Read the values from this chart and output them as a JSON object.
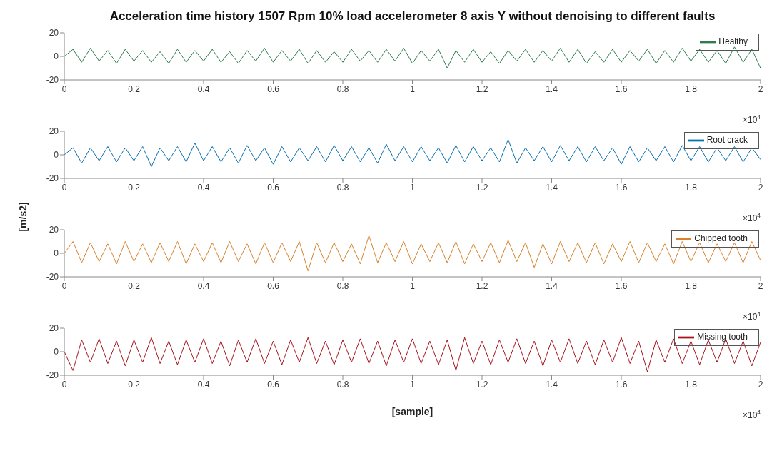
{
  "chart_data": [
    {
      "type": "line",
      "title": "Acceleration time history 1507 Rpm 10% load accelerometer 8 axis Y without denoising to different faults",
      "annotations": [
        "×10$^{4}$"
      ],
      "legend": "top right",
      "grid": false,
      "xlim": [
        0,
        2
      ],
      "xticks": [
        0,
        0.2,
        0.4,
        0.6,
        0.8,
        1,
        1.2,
        1.4,
        1.6,
        1.8,
        2
      ],
      "ylim": [
        -20,
        20
      ],
      "yticks": [
        -20,
        0,
        20
      ],
      "x": [
        0,
        0.025,
        0.05,
        0.075,
        0.1,
        0.125,
        0.15,
        0.175,
        0.2,
        0.225,
        0.25,
        0.275,
        0.3,
        0.325,
        0.35,
        0.375,
        0.4,
        0.425,
        0.45,
        0.475,
        0.5,
        0.525,
        0.55,
        0.575,
        0.6,
        0.625,
        0.65,
        0.675,
        0.7,
        0.725,
        0.75,
        0.775,
        0.8,
        0.825,
        0.85,
        0.875,
        0.9,
        0.925,
        0.95,
        0.975,
        1,
        1.025,
        1.05,
        1.075,
        1.1,
        1.125,
        1.15,
        1.175,
        1.2,
        1.225,
        1.25,
        1.275,
        1.3,
        1.325,
        1.35,
        1.375,
        1.4,
        1.425,
        1.45,
        1.475,
        1.5,
        1.525,
        1.55,
        1.575,
        1.6,
        1.625,
        1.65,
        1.675,
        1.7,
        1.725,
        1.75,
        1.775,
        1.8,
        1.825,
        1.85,
        1.875,
        1.9,
        1.925,
        1.95,
        1.975,
        2
      ],
      "series": [
        {
          "name": "Healthy",
          "color": "#2e7d4f",
          "values": [
            0,
            6,
            -5,
            7,
            -4,
            5,
            -6,
            6,
            -4,
            5,
            -5,
            4,
            -6,
            6,
            -5,
            5,
            -4,
            6,
            -5,
            4,
            -6,
            5,
            -4,
            7,
            -5,
            5,
            -4,
            6,
            -6,
            5,
            -5,
            4,
            -5,
            6,
            -4,
            5,
            -5,
            6,
            -4,
            7,
            -6,
            5,
            -4,
            6,
            -10,
            5,
            -5,
            6,
            -5,
            4,
            -6,
            5,
            -4,
            6,
            -5,
            5,
            -4,
            7,
            -5,
            6,
            -6,
            4,
            -5,
            6,
            -5,
            5,
            -4,
            6,
            -6,
            5,
            -5,
            7,
            -4,
            6,
            -5,
            5,
            -6,
            8,
            -5,
            6,
            -10
          ]
        }
      ]
    },
    {
      "type": "line",
      "ylabel": "[m/s2]",
      "annotations": [
        "×10$^{4}$"
      ],
      "legend": "top right",
      "grid": false,
      "xlim": [
        0,
        2
      ],
      "xticks": [
        0,
        0.2,
        0.4,
        0.6,
        0.8,
        1,
        1.2,
        1.4,
        1.6,
        1.8,
        2
      ],
      "ylim": [
        -20,
        20
      ],
      "yticks": [
        -20,
        0,
        20
      ],
      "x": [
        0,
        0.025,
        0.05,
        0.075,
        0.1,
        0.125,
        0.15,
        0.175,
        0.2,
        0.225,
        0.25,
        0.275,
        0.3,
        0.325,
        0.35,
        0.375,
        0.4,
        0.425,
        0.45,
        0.475,
        0.5,
        0.525,
        0.55,
        0.575,
        0.6,
        0.625,
        0.65,
        0.675,
        0.7,
        0.725,
        0.75,
        0.775,
        0.8,
        0.825,
        0.85,
        0.875,
        0.9,
        0.925,
        0.95,
        0.975,
        1,
        1.025,
        1.05,
        1.075,
        1.1,
        1.125,
        1.15,
        1.175,
        1.2,
        1.225,
        1.25,
        1.275,
        1.3,
        1.325,
        1.35,
        1.375,
        1.4,
        1.425,
        1.45,
        1.475,
        1.5,
        1.525,
        1.55,
        1.575,
        1.6,
        1.625,
        1.65,
        1.675,
        1.7,
        1.725,
        1.75,
        1.775,
        1.8,
        1.825,
        1.85,
        1.875,
        1.9,
        1.925,
        1.95,
        1.975,
        2
      ],
      "series": [
        {
          "name": "Root crack",
          "color": "#0b6fb0",
          "values": [
            0,
            6,
            -7,
            6,
            -5,
            7,
            -6,
            6,
            -5,
            7,
            -10,
            6,
            -5,
            7,
            -6,
            10,
            -5,
            7,
            -6,
            6,
            -7,
            8,
            -5,
            6,
            -8,
            7,
            -6,
            6,
            -5,
            7,
            -6,
            8,
            -5,
            7,
            -6,
            6,
            -7,
            9,
            -5,
            7,
            -6,
            7,
            -5,
            6,
            -7,
            8,
            -6,
            7,
            -5,
            6,
            -6,
            13,
            -7,
            6,
            -5,
            7,
            -6,
            8,
            -5,
            7,
            -6,
            7,
            -5,
            6,
            -8,
            7,
            -6,
            6,
            -5,
            7,
            -6,
            8,
            -5,
            7,
            -6,
            6,
            -5,
            7,
            -6,
            6,
            -4
          ]
        }
      ]
    },
    {
      "type": "line",
      "annotations": [
        "×10$^{4}$"
      ],
      "legend": "top right",
      "grid": false,
      "xlim": [
        0,
        2
      ],
      "xticks": [
        0,
        0.2,
        0.4,
        0.6,
        0.8,
        1,
        1.2,
        1.4,
        1.6,
        1.8,
        2
      ],
      "ylim": [
        -20,
        20
      ],
      "yticks": [
        -20,
        0,
        20
      ],
      "x": [
        0,
        0.025,
        0.05,
        0.075,
        0.1,
        0.125,
        0.15,
        0.175,
        0.2,
        0.225,
        0.25,
        0.275,
        0.3,
        0.325,
        0.35,
        0.375,
        0.4,
        0.425,
        0.45,
        0.475,
        0.5,
        0.525,
        0.55,
        0.575,
        0.6,
        0.625,
        0.65,
        0.675,
        0.7,
        0.725,
        0.75,
        0.775,
        0.8,
        0.825,
        0.85,
        0.875,
        0.9,
        0.925,
        0.95,
        0.975,
        1,
        1.025,
        1.05,
        1.075,
        1.1,
        1.125,
        1.15,
        1.175,
        1.2,
        1.225,
        1.25,
        1.275,
        1.3,
        1.325,
        1.35,
        1.375,
        1.4,
        1.425,
        1.45,
        1.475,
        1.5,
        1.525,
        1.55,
        1.575,
        1.6,
        1.625,
        1.65,
        1.675,
        1.7,
        1.725,
        1.75,
        1.775,
        1.8,
        1.825,
        1.85,
        1.875,
        1.9,
        1.925,
        1.95,
        1.975,
        2
      ],
      "series": [
        {
          "name": "Chipped tooth",
          "color": "#d9822b",
          "values": [
            0,
            10,
            -8,
            9,
            -7,
            8,
            -9,
            10,
            -7,
            8,
            -8,
            9,
            -7,
            10,
            -9,
            8,
            -7,
            9,
            -8,
            10,
            -7,
            8,
            -9,
            9,
            -8,
            9,
            -7,
            10,
            -15,
            9,
            -8,
            9,
            -7,
            8,
            -9,
            15,
            -8,
            9,
            -7,
            10,
            -9,
            8,
            -7,
            9,
            -8,
            10,
            -9,
            8,
            -7,
            9,
            -8,
            11,
            -7,
            9,
            -12,
            8,
            -9,
            10,
            -7,
            9,
            -8,
            9,
            -9,
            8,
            -7,
            10,
            -8,
            9,
            -7,
            8,
            -9,
            10,
            -7,
            9,
            -8,
            8,
            -7,
            9,
            -8,
            10,
            -6
          ]
        }
      ]
    },
    {
      "type": "line",
      "xlabel": "[sample]",
      "annotations": [
        "×10$^{4}$"
      ],
      "legend": "top right",
      "grid": false,
      "xlim": [
        0,
        2
      ],
      "xticks": [
        0,
        0.2,
        0.4,
        0.6,
        0.8,
        1,
        1.2,
        1.4,
        1.6,
        1.8,
        2
      ],
      "ylim": [
        -20,
        20
      ],
      "yticks": [
        -20,
        0,
        20
      ],
      "x": [
        0,
        0.025,
        0.05,
        0.075,
        0.1,
        0.125,
        0.15,
        0.175,
        0.2,
        0.225,
        0.25,
        0.275,
        0.3,
        0.325,
        0.35,
        0.375,
        0.4,
        0.425,
        0.45,
        0.475,
        0.5,
        0.525,
        0.55,
        0.575,
        0.6,
        0.625,
        0.65,
        0.675,
        0.7,
        0.725,
        0.75,
        0.775,
        0.8,
        0.825,
        0.85,
        0.875,
        0.9,
        0.925,
        0.95,
        0.975,
        1,
        1.025,
        1.05,
        1.075,
        1.1,
        1.125,
        1.15,
        1.175,
        1.2,
        1.225,
        1.25,
        1.275,
        1.3,
        1.325,
        1.35,
        1.375,
        1.4,
        1.425,
        1.45,
        1.475,
        1.5,
        1.525,
        1.55,
        1.575,
        1.6,
        1.625,
        1.65,
        1.675,
        1.7,
        1.725,
        1.75,
        1.775,
        1.8,
        1.825,
        1.85,
        1.875,
        1.9,
        1.925,
        1.95,
        1.975,
        2
      ],
      "series": [
        {
          "name": "Missing tooth",
          "color": "#a8141c",
          "values": [
            0,
            -16,
            10,
            -9,
            11,
            -10,
            9,
            -12,
            10,
            -9,
            12,
            -10,
            9,
            -11,
            10,
            -9,
            11,
            -10,
            9,
            -12,
            10,
            -9,
            11,
            -10,
            9,
            -11,
            10,
            -9,
            12,
            -10,
            9,
            -11,
            10,
            -9,
            11,
            -10,
            9,
            -12,
            10,
            -9,
            11,
            -10,
            9,
            -11,
            10,
            -16,
            12,
            -10,
            9,
            -11,
            10,
            -9,
            11,
            -10,
            9,
            -12,
            10,
            -9,
            11,
            -10,
            9,
            -11,
            10,
            -9,
            12,
            -10,
            9,
            -17,
            10,
            -9,
            11,
            -10,
            9,
            -11,
            10,
            -9,
            11,
            -10,
            9,
            -12,
            8
          ]
        }
      ]
    }
  ]
}
